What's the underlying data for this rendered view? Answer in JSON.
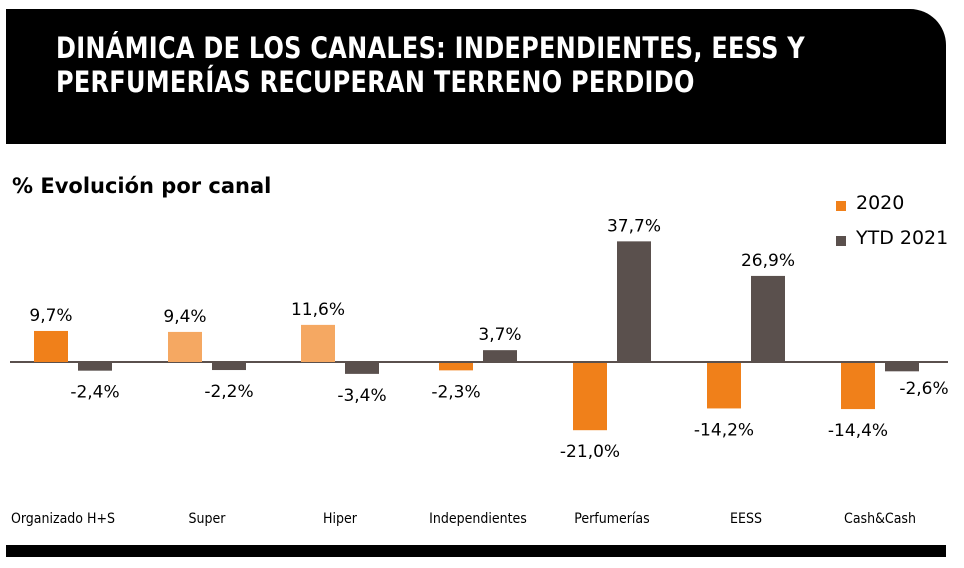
{
  "banner": {
    "title": "DINÁMICA DE LOS CANALES: INDEPENDIENTES, EESS Y PERFUMERÍAS RECUPERAN TERRENO PERDIDO"
  },
  "colors": {
    "series_2020": "#F0801A",
    "series_2020_light": "#F5A862",
    "series_ytd2021": "#5A504D",
    "axis": "#5A504D"
  },
  "chart_data": {
    "type": "bar",
    "title": "% Evolución por canal",
    "xlabel": "",
    "ylabel": "",
    "ylim": [
      -25,
      40
    ],
    "grid": false,
    "legend_position": "top-right",
    "categories": [
      "Organizado H+S",
      "Super",
      "Hiper",
      "Independientes",
      "Perfumerías",
      "EESS",
      "Cash&Cash"
    ],
    "series": [
      {
        "name": "2020",
        "values": [
          9.7,
          9.4,
          11.6,
          -2.3,
          -21.0,
          -14.2,
          -14.4
        ],
        "labels": [
          "9,7%",
          "9,4%",
          "11,6%",
          "-2,3%",
          "-21,0%",
          "-14,2%",
          "-14,4%"
        ],
        "light_fill_categories": [
          "Super",
          "Hiper"
        ]
      },
      {
        "name": "YTD 2021",
        "values": [
          -2.4,
          -2.2,
          -3.4,
          3.7,
          37.7,
          26.9,
          -2.6
        ],
        "labels": [
          "-2,4%",
          "-2,2%",
          "-3,4%",
          "3,7%",
          "37,7%",
          "26,9%",
          "-2,6%"
        ]
      }
    ]
  }
}
